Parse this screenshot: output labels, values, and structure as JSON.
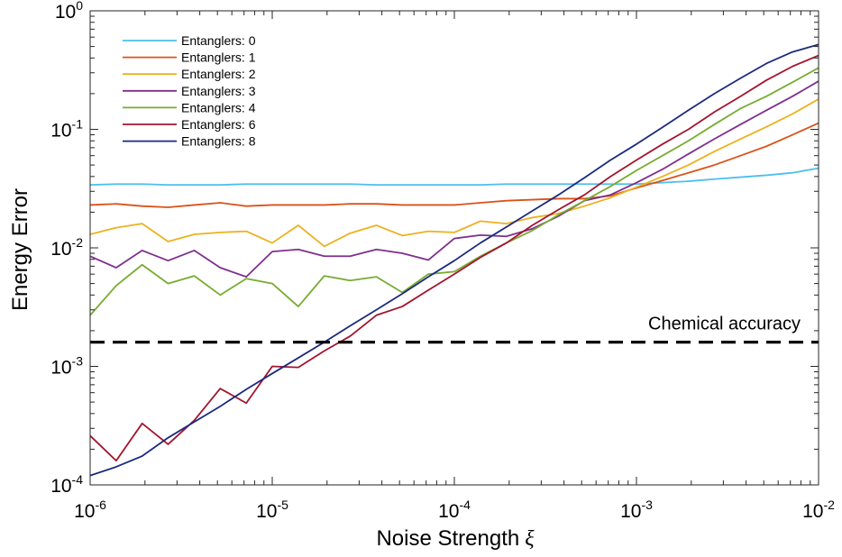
{
  "chart_data": {
    "type": "line",
    "xscale": "log",
    "yscale": "log",
    "xlim": [
      1e-06,
      0.01
    ],
    "ylim": [
      0.0001,
      1
    ],
    "xlabel": "Noise Strength",
    "xlabel_symbol": "ξ",
    "ylabel": "Energy Error",
    "x_ticks": [
      {
        "base": "10",
        "exp": "-6",
        "value": 1e-06
      },
      {
        "base": "10",
        "exp": "-5",
        "value": 1e-05
      },
      {
        "base": "10",
        "exp": "-4",
        "value": 0.0001
      },
      {
        "base": "10",
        "exp": "-3",
        "value": 0.001
      },
      {
        "base": "10",
        "exp": "-2",
        "value": 0.01
      }
    ],
    "y_ticks": [
      {
        "base": "10",
        "exp": "-4",
        "value": 0.0001
      },
      {
        "base": "10",
        "exp": "-3",
        "value": 0.001
      },
      {
        "base": "10",
        "exp": "-2",
        "value": 0.01
      },
      {
        "base": "10",
        "exp": "-1",
        "value": 0.1
      },
      {
        "base": "10",
        "exp": "0",
        "value": 1
      }
    ],
    "grid": false,
    "legend_position": "top-left",
    "x": [
      1e-06,
      1.39e-06,
      1.93e-06,
      2.68e-06,
      3.73e-06,
      5.18e-06,
      7.2e-06,
      1e-05,
      1.39e-05,
      1.93e-05,
      2.68e-05,
      3.73e-05,
      5.18e-05,
      7.2e-05,
      0.0001,
      0.000139,
      0.000193,
      0.000268,
      0.000373,
      0.000518,
      0.00072,
      0.001,
      0.00139,
      0.00193,
      0.00268,
      0.00373,
      0.00518,
      0.0072,
      0.01
    ],
    "series": [
      {
        "name": "Entanglers: 0",
        "color": "#4DBEEE",
        "values": [
          0.034,
          0.0345,
          0.0345,
          0.034,
          0.034,
          0.034,
          0.0345,
          0.0345,
          0.0345,
          0.0345,
          0.0345,
          0.034,
          0.034,
          0.034,
          0.034,
          0.034,
          0.0345,
          0.0345,
          0.0345,
          0.0345,
          0.0345,
          0.0345,
          0.0355,
          0.0365,
          0.038,
          0.0395,
          0.041,
          0.043,
          0.047
        ]
      },
      {
        "name": "Entanglers: 1",
        "color": "#D95319",
        "values": [
          0.023,
          0.0235,
          0.0225,
          0.022,
          0.023,
          0.024,
          0.0225,
          0.023,
          0.023,
          0.023,
          0.0235,
          0.0235,
          0.023,
          0.023,
          0.023,
          0.024,
          0.025,
          0.0255,
          0.026,
          0.026,
          0.0275,
          0.032,
          0.037,
          0.043,
          0.05,
          0.06,
          0.072,
          0.09,
          0.113
        ]
      },
      {
        "name": "Entanglers: 2",
        "color": "#EDB120",
        "values": [
          0.013,
          0.0148,
          0.016,
          0.0113,
          0.013,
          0.0135,
          0.0138,
          0.011,
          0.0155,
          0.0103,
          0.0133,
          0.0155,
          0.0127,
          0.0138,
          0.0135,
          0.0168,
          0.016,
          0.018,
          0.0195,
          0.0225,
          0.0265,
          0.0325,
          0.04,
          0.05,
          0.065,
          0.083,
          0.105,
          0.135,
          0.18
        ]
      },
      {
        "name": "Entanglers: 3",
        "color": "#7E2F8E",
        "values": [
          0.0085,
          0.0068,
          0.0095,
          0.0078,
          0.0095,
          0.0068,
          0.0057,
          0.0093,
          0.0097,
          0.0085,
          0.0085,
          0.0097,
          0.009,
          0.0079,
          0.012,
          0.0128,
          0.0125,
          0.0145,
          0.0185,
          0.025,
          0.028,
          0.0355,
          0.046,
          0.062,
          0.083,
          0.11,
          0.145,
          0.19,
          0.255
        ]
      },
      {
        "name": "Entanglers: 4",
        "color": "#77AC30",
        "values": [
          0.0027,
          0.0048,
          0.0072,
          0.005,
          0.0058,
          0.004,
          0.0055,
          0.005,
          0.0032,
          0.0058,
          0.0053,
          0.0057,
          0.0042,
          0.006,
          0.0063,
          0.0085,
          0.011,
          0.014,
          0.019,
          0.025,
          0.033,
          0.045,
          0.06,
          0.08,
          0.11,
          0.15,
          0.19,
          0.25,
          0.33
        ]
      },
      {
        "name": "Entanglers: 6",
        "color": "#A2142F",
        "values": [
          0.00026,
          0.00016,
          0.00033,
          0.00022,
          0.00035,
          0.00065,
          0.00049,
          0.001,
          0.00098,
          0.00135,
          0.0018,
          0.0027,
          0.0032,
          0.0044,
          0.006,
          0.0083,
          0.011,
          0.0155,
          0.021,
          0.028,
          0.04,
          0.055,
          0.075,
          0.1,
          0.14,
          0.19,
          0.26,
          0.34,
          0.42
        ]
      },
      {
        "name": "Entanglers: 8",
        "color": "#1B2A7F",
        "values": [
          0.00012,
          0.000142,
          0.000175,
          0.00025,
          0.00034,
          0.00046,
          0.00064,
          0.00087,
          0.00118,
          0.0016,
          0.0022,
          0.003,
          0.0041,
          0.0057,
          0.0078,
          0.011,
          0.015,
          0.0205,
          0.028,
          0.039,
          0.055,
          0.075,
          0.104,
          0.145,
          0.2,
          0.27,
          0.36,
          0.45,
          0.52
        ]
      }
    ],
    "reference_line": {
      "label": "Chemical accuracy",
      "value": 0.0016,
      "color": "#000000",
      "style": "dashed"
    }
  }
}
